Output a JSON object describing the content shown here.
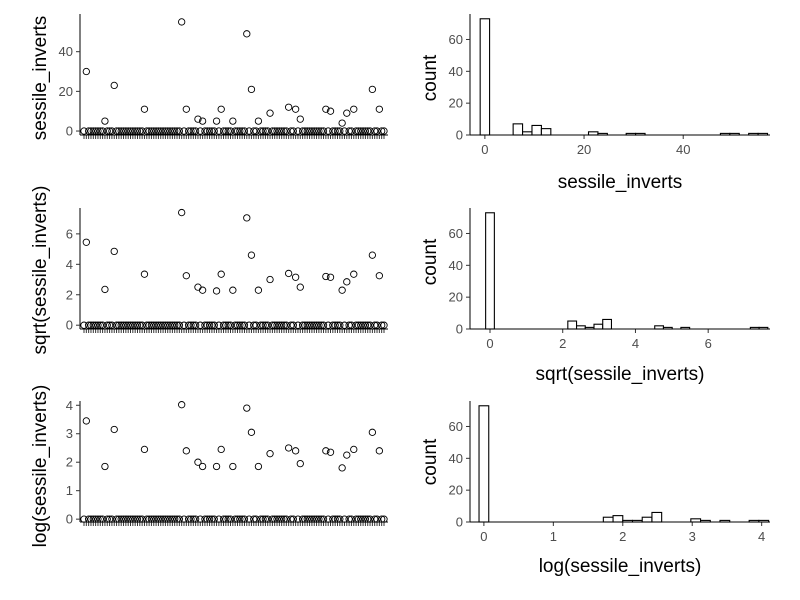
{
  "colors": {
    "background": "#ffffff",
    "ink": "#000000",
    "tick_text": "#4d4d4d"
  },
  "chart_data": [
    {
      "type": "scatter",
      "x_categorical": true,
      "n_points": 130,
      "title": "",
      "xlabel": "",
      "ylabel": "sessile_inverts",
      "yticks": [
        0,
        20,
        40
      ],
      "ylim": [
        -2,
        59
      ],
      "nonzero_points": [
        [
          1,
          30
        ],
        [
          9,
          5
        ],
        [
          13,
          23
        ],
        [
          26,
          11
        ],
        [
          42,
          55
        ],
        [
          44,
          11
        ],
        [
          49,
          6
        ],
        [
          51,
          5
        ],
        [
          57,
          5
        ],
        [
          59,
          11
        ],
        [
          64,
          5
        ],
        [
          70,
          49
        ],
        [
          72,
          21
        ],
        [
          75,
          5
        ],
        [
          80,
          9
        ],
        [
          88,
          12
        ],
        [
          91,
          11
        ],
        [
          93,
          6
        ],
        [
          104,
          11
        ],
        [
          106,
          10
        ],
        [
          111,
          4
        ],
        [
          113,
          9
        ],
        [
          116,
          11
        ],
        [
          124,
          21
        ],
        [
          127,
          11
        ]
      ],
      "other_values": 0,
      "grid": false
    },
    {
      "type": "histogram",
      "title": "",
      "xlabel": "sessile_inverts",
      "ylabel": "count",
      "xticks": [
        0,
        20,
        40
      ],
      "yticks": [
        0,
        20,
        40,
        60
      ],
      "xlim": [
        -3,
        57.5
      ],
      "ylim": [
        0,
        76
      ],
      "bins": [
        [
          -0.95,
          0.95,
          73
        ],
        [
          5.7,
          7.6,
          7
        ],
        [
          7.6,
          9.5,
          2
        ],
        [
          9.5,
          11.4,
          6
        ],
        [
          11.4,
          13.3,
          4
        ],
        [
          20.9,
          22.8,
          2
        ],
        [
          22.8,
          24.7,
          1
        ],
        [
          28.5,
          30.4,
          1
        ],
        [
          30.4,
          32.3,
          1
        ],
        [
          47.5,
          49.4,
          1
        ],
        [
          49.4,
          51.3,
          1
        ],
        [
          53.2,
          55.1,
          1
        ],
        [
          55.1,
          57,
          1
        ]
      ],
      "grid": false
    },
    {
      "type": "scatter",
      "x_categorical": true,
      "n_points": 130,
      "title": "",
      "xlabel": "",
      "ylabel": "sqrt(sessile_inverts)",
      "yticks": [
        0,
        2,
        4,
        6
      ],
      "ylim": [
        -0.25,
        7.7
      ],
      "nonzero_points": [
        [
          1,
          5.45
        ],
        [
          9,
          2.35
        ],
        [
          13,
          4.85
        ],
        [
          26,
          3.35
        ],
        [
          42,
          7.4
        ],
        [
          44,
          3.25
        ],
        [
          49,
          2.5
        ],
        [
          51,
          2.3
        ],
        [
          57,
          2.25
        ],
        [
          59,
          3.35
        ],
        [
          64,
          2.3
        ],
        [
          70,
          7.05
        ],
        [
          72,
          4.6
        ],
        [
          75,
          2.3
        ],
        [
          80,
          3.0
        ],
        [
          88,
          3.4
        ],
        [
          91,
          3.15
        ],
        [
          93,
          2.5
        ],
        [
          104,
          3.2
        ],
        [
          106,
          3.15
        ],
        [
          111,
          2.3
        ],
        [
          113,
          2.85
        ],
        [
          116,
          3.35
        ],
        [
          124,
          4.6
        ],
        [
          127,
          3.25
        ]
      ],
      "other_values": 0,
      "grid": false
    },
    {
      "type": "histogram",
      "title": "",
      "xlabel": "sqrt(sessile_inverts)",
      "ylabel": "count",
      "xticks": [
        0,
        2,
        4,
        6
      ],
      "yticks": [
        0,
        20,
        40,
        60
      ],
      "xlim": [
        -0.55,
        7.7
      ],
      "ylim": [
        0,
        76
      ],
      "bins": [
        [
          -0.12,
          0.12,
          73
        ],
        [
          2.14,
          2.38,
          5
        ],
        [
          2.38,
          2.62,
          2
        ],
        [
          2.62,
          2.86,
          1
        ],
        [
          2.86,
          3.1,
          3
        ],
        [
          3.1,
          3.34,
          6
        ],
        [
          4.53,
          4.77,
          2
        ],
        [
          4.77,
          5.01,
          1
        ],
        [
          5.25,
          5.49,
          1
        ],
        [
          7.16,
          7.4,
          1
        ],
        [
          7.4,
          7.64,
          1
        ]
      ],
      "grid": false
    },
    {
      "type": "scatter",
      "x_categorical": true,
      "n_points": 130,
      "title": "",
      "xlabel": "",
      "ylabel": "log(sessile_inverts)",
      "yticks": [
        0,
        1,
        2,
        3,
        4
      ],
      "ylim": [
        -0.1,
        4.15
      ],
      "nonzero_points": [
        [
          1,
          3.45
        ],
        [
          9,
          1.85
        ],
        [
          13,
          3.15
        ],
        [
          26,
          2.45
        ],
        [
          42,
          4.02
        ],
        [
          44,
          2.4
        ],
        [
          49,
          2.0
        ],
        [
          51,
          1.85
        ],
        [
          57,
          1.85
        ],
        [
          59,
          2.45
        ],
        [
          64,
          1.85
        ],
        [
          70,
          3.9
        ],
        [
          72,
          3.05
        ],
        [
          75,
          1.85
        ],
        [
          80,
          2.3
        ],
        [
          88,
          2.5
        ],
        [
          91,
          2.4
        ],
        [
          93,
          1.95
        ],
        [
          104,
          2.4
        ],
        [
          106,
          2.35
        ],
        [
          111,
          1.8
        ],
        [
          113,
          2.25
        ],
        [
          116,
          2.45
        ],
        [
          124,
          3.05
        ],
        [
          127,
          2.4
        ]
      ],
      "other_values": 0,
      "grid": false
    },
    {
      "type": "histogram",
      "title": "",
      "xlabel": "log(sessile_inverts)",
      "ylabel": "count",
      "xticks": [
        0,
        1,
        2,
        3,
        4
      ],
      "yticks": [
        0,
        20,
        40,
        60
      ],
      "xlim": [
        -0.2,
        4.12
      ],
      "ylim": [
        0,
        76
      ],
      "bins": [
        [
          -0.07,
          0.07,
          73
        ],
        [
          1.72,
          1.86,
          3
        ],
        [
          1.86,
          2.0,
          4
        ],
        [
          2.0,
          2.14,
          1
        ],
        [
          2.14,
          2.28,
          1
        ],
        [
          2.28,
          2.42,
          3
        ],
        [
          2.42,
          2.56,
          6
        ],
        [
          2.98,
          3.12,
          2
        ],
        [
          3.12,
          3.26,
          1
        ],
        [
          3.4,
          3.54,
          1
        ],
        [
          3.82,
          3.96,
          1
        ],
        [
          3.96,
          4.1,
          1
        ]
      ],
      "grid": false
    }
  ]
}
